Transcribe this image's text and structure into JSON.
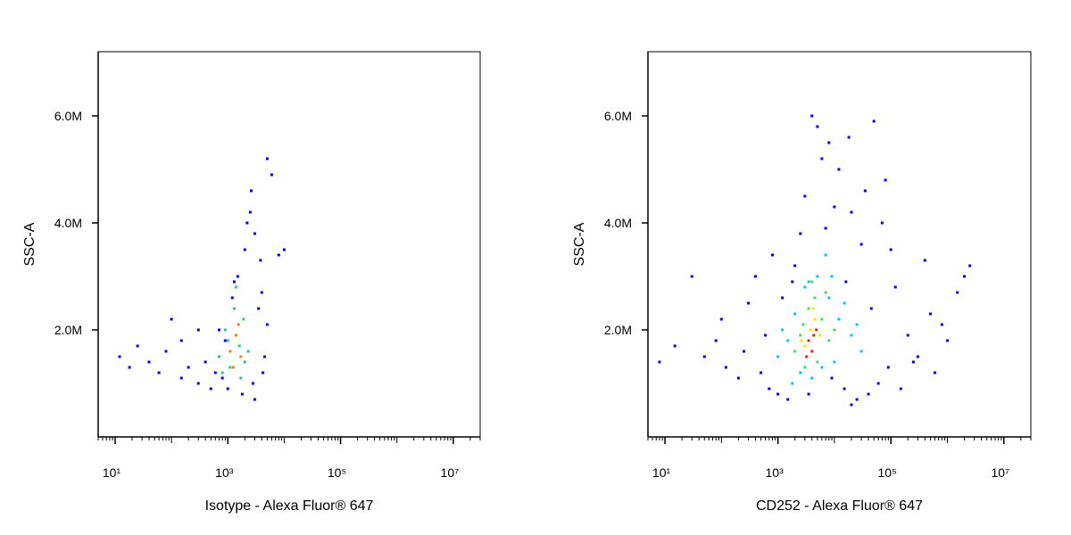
{
  "chart_data": [
    {
      "type": "scatter",
      "xlabel": "Isotype - Alexa Fluor® 647",
      "ylabel": "SSC-A",
      "xscale": "log",
      "xlim": [
        5,
        30000000
      ],
      "ylim": [
        0,
        7200000
      ],
      "xticks": [
        {
          "value": 10,
          "label": "10¹"
        },
        {
          "value": 1000,
          "label": "10³"
        },
        {
          "value": 100000,
          "label": "10⁵"
        },
        {
          "value": 10000000,
          "label": "10⁷"
        }
      ],
      "yticks": [
        {
          "value": 2000000,
          "label": "2.0M"
        },
        {
          "value": 4000000,
          "label": "4.0M"
        },
        {
          "value": 6000000,
          "label": "6.0M"
        }
      ],
      "series": [
        {
          "color": "#0000ff",
          "x": [
            12,
            18,
            25,
            40,
            60,
            80,
            100,
            150,
            200,
            300,
            400,
            500,
            600,
            800,
            1000,
            1200,
            1500,
            2000,
            2500,
            3000,
            4000,
            5000,
            6000,
            8000,
            3500,
            2800,
            1800,
            700,
            900,
            4500,
            2200,
            1300,
            5000,
            3000,
            150,
            300,
            10000,
            2600,
            3800,
            4200
          ],
          "values": [
            1500000,
            1300000,
            1700000,
            1400000,
            1200000,
            1600000,
            2200000,
            1100000,
            1300000,
            1000000,
            1400000,
            900000,
            1200000,
            1100000,
            900000,
            2600000,
            3000000,
            3500000,
            4200000,
            3800000,
            2700000,
            5200000,
            4900000,
            3400000,
            2400000,
            1000000,
            800000,
            2000000,
            1800000,
            1500000,
            4000000,
            2900000,
            2100000,
            700000,
            1800000,
            2000000,
            3500000,
            4600000,
            3300000,
            1200000
          ]
        },
        {
          "color": "#20d080",
          "x": [
            700,
            900,
            1100,
            1300,
            1600,
            1900,
            2300,
            800,
            1400,
            2000,
            1000,
            1700
          ],
          "values": [
            1500000,
            2000000,
            1300000,
            2400000,
            1700000,
            2200000,
            1600000,
            1200000,
            2800000,
            1400000,
            1800000,
            1100000
          ]
        },
        {
          "color": "#ff8000",
          "x": [
            1100,
            1400,
            1700,
            1250,
            1550
          ],
          "values": [
            1600000,
            1900000,
            1500000,
            1300000,
            2100000
          ]
        }
      ]
    },
    {
      "type": "scatter",
      "xlabel": "CD252 - Alexa Fluor® 647",
      "ylabel": "SSC-A",
      "xscale": "log",
      "xlim": [
        5,
        30000000
      ],
      "ylim": [
        0,
        7200000
      ],
      "xticks": [
        {
          "value": 10,
          "label": "10¹"
        },
        {
          "value": 1000,
          "label": "10³"
        },
        {
          "value": 100000,
          "label": "10⁵"
        },
        {
          "value": 10000000,
          "label": "10⁷"
        }
      ],
      "yticks": [
        {
          "value": 2000000,
          "label": "2.0M"
        },
        {
          "value": 4000000,
          "label": "4.0M"
        },
        {
          "value": 6000000,
          "label": "6.0M"
        }
      ],
      "series": [
        {
          "color": "#0000ff",
          "x": [
            8,
            15,
            30,
            50,
            80,
            120,
            200,
            300,
            500,
            700,
            1000,
            1500,
            2000,
            3000,
            5000,
            8000,
            12000,
            20000,
            30000,
            50000,
            80000,
            120000,
            200000,
            400000,
            800000,
            1500000,
            2500000,
            600000,
            300000,
            150000,
            60000,
            40000,
            25000,
            15000,
            9000,
            6000,
            4000,
            2500,
            1200,
            600,
            250,
            100,
            70000,
            100000,
            35000,
            18000,
            10000,
            7000,
            45000,
            250000,
            90000,
            20000,
            3500,
            1800,
            800,
            400,
            500000,
            1000000,
            2000000,
            16000
          ],
          "values": [
            1400000,
            1700000,
            3000000,
            1500000,
            1800000,
            1300000,
            1100000,
            2500000,
            1200000,
            900000,
            800000,
            700000,
            3200000,
            4500000,
            5800000,
            5500000,
            5000000,
            4200000,
            3600000,
            5900000,
            4800000,
            2800000,
            1900000,
            3300000,
            2100000,
            2700000,
            3200000,
            1200000,
            1500000,
            900000,
            1000000,
            800000,
            700000,
            900000,
            1100000,
            5200000,
            6000000,
            3800000,
            2600000,
            1900000,
            1600000,
            2200000,
            4000000,
            3500000,
            4600000,
            5600000,
            4300000,
            3900000,
            2400000,
            1400000,
            1300000,
            600000,
            800000,
            2900000,
            3400000,
            3000000,
            2300000,
            1800000,
            3000000,
            2900000
          ]
        },
        {
          "color": "#00c8ff",
          "x": [
            1000,
            1500,
            2000,
            3000,
            5000,
            8000,
            12000,
            20000,
            30000,
            2500,
            4000,
            7000,
            15000,
            1200,
            10000,
            6000,
            3500,
            25000,
            1800,
            9000
          ],
          "values": [
            1500000,
            1800000,
            2300000,
            2800000,
            3000000,
            2600000,
            2200000,
            1900000,
            1600000,
            1200000,
            1100000,
            3400000,
            2500000,
            2000000,
            1400000,
            1300000,
            2900000,
            2100000,
            1000000,
            3000000
          ]
        },
        {
          "color": "#40e060",
          "x": [
            2000,
            2800,
            3500,
            4500,
            6000,
            8000,
            5000,
            3000,
            7000,
            10000,
            2500,
            4000
          ],
          "values": [
            1600000,
            2100000,
            2400000,
            2600000,
            2200000,
            1800000,
            1400000,
            1300000,
            2700000,
            2000000,
            1900000,
            2900000
          ]
        },
        {
          "color": "#ffe000",
          "x": [
            3000,
            3800,
            4500,
            5500,
            2600,
            4200
          ],
          "values": [
            1700000,
            2000000,
            2200000,
            1900000,
            1800000,
            2400000
          ]
        },
        {
          "color": "#ff2000",
          "x": [
            3500,
            4000,
            4800,
            3200,
            4300
          ],
          "values": [
            1800000,
            1600000,
            2000000,
            1500000,
            1900000
          ]
        }
      ]
    }
  ]
}
